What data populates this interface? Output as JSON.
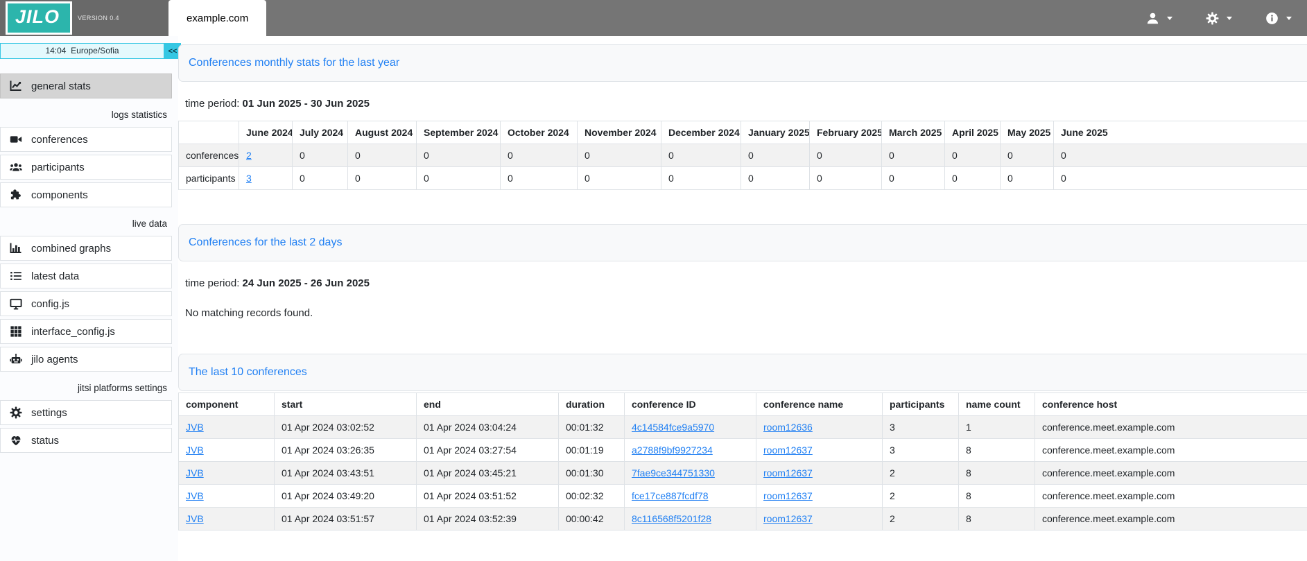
{
  "colors": {
    "brand_teal": "#2cb5ac",
    "topbar_gray": "#757575",
    "accent_cyan": "#35c7e3",
    "link_blue": "#2180f3",
    "row_stripe": "#f2f2f2",
    "active_item_gray": "#d4d4d4"
  },
  "topbar": {
    "logo": "JILO",
    "version": "VERSION 0.4",
    "tab": "example.com",
    "menus": [
      {
        "icon": "user-icon"
      },
      {
        "icon": "gear-icon"
      },
      {
        "icon": "info-icon"
      }
    ]
  },
  "sidebar": {
    "clock_time": "14:04",
    "clock_zone": "Europe/Sofia",
    "collapse_label": "<<",
    "items": [
      {
        "type": "item",
        "icon": "chart-line-icon",
        "label": "general stats",
        "active": true
      },
      {
        "type": "section",
        "label": "logs statistics"
      },
      {
        "type": "item",
        "icon": "video-icon",
        "label": "conferences"
      },
      {
        "type": "item",
        "icon": "users-icon",
        "label": "participants"
      },
      {
        "type": "item",
        "icon": "puzzle-icon",
        "label": "components"
      },
      {
        "type": "section",
        "label": "live data"
      },
      {
        "type": "item",
        "icon": "bar-chart-icon",
        "label": "combined graphs"
      },
      {
        "type": "item",
        "icon": "list-icon",
        "label": "latest data"
      },
      {
        "type": "item",
        "icon": "monitor-icon",
        "label": "config.js"
      },
      {
        "type": "item",
        "icon": "grid-icon",
        "label": "interface_config.js"
      },
      {
        "type": "item",
        "icon": "robot-icon",
        "label": "jilo agents"
      },
      {
        "type": "section",
        "label": "jitsi platforms settings"
      },
      {
        "type": "item",
        "icon": "gear-icon",
        "label": "settings"
      },
      {
        "type": "item",
        "icon": "heart-pulse-icon",
        "label": "status"
      }
    ]
  },
  "main": {
    "monthly": {
      "title": "Conferences monthly stats for the last year",
      "period_label": "time period:",
      "period_value": "01 Jun 2025 - 30 Jun 2025",
      "table": {
        "columns": [
          "",
          "June 2024",
          "July 2024",
          "August 2024",
          "September 2024",
          "October 2024",
          "November 2024",
          "December 2024",
          "January 2025",
          "February 2025",
          "March 2025",
          "April 2025",
          "May 2025",
          "June 2025"
        ],
        "rows": [
          {
            "label": "conferences",
            "first_is_link": true,
            "values": [
              "2",
              "0",
              "0",
              "0",
              "0",
              "0",
              "0",
              "0",
              "0",
              "0",
              "0",
              "0",
              "0"
            ]
          },
          {
            "label": "participants",
            "first_is_link": true,
            "values": [
              "3",
              "0",
              "0",
              "0",
              "0",
              "0",
              "0",
              "0",
              "0",
              "0",
              "0",
              "0",
              "0"
            ]
          }
        ]
      }
    },
    "recent": {
      "title": "Conferences for the last 2 days",
      "period_label": "time period:",
      "period_value": "24 Jun 2025 - 26 Jun 2025",
      "empty": "No matching records found."
    },
    "last10": {
      "title": "The last 10 conferences",
      "columns": [
        "component",
        "start",
        "end",
        "duration",
        "conference ID",
        "conference name",
        "participants",
        "name count",
        "conference host"
      ],
      "rows": [
        [
          "JVB",
          "01 Apr 2024 03:02:52",
          "01 Apr 2024 03:04:24",
          "00:01:32",
          "4c14584fce9a5970",
          "room12636",
          "3",
          "1",
          "conference.meet.example.com"
        ],
        [
          "JVB",
          "01 Apr 2024 03:26:35",
          "01 Apr 2024 03:27:54",
          "00:01:19",
          "a2788f9bf9927234",
          "room12637",
          "3",
          "8",
          "conference.meet.example.com"
        ],
        [
          "JVB",
          "01 Apr 2024 03:43:51",
          "01 Apr 2024 03:45:21",
          "00:01:30",
          "7fae9ce344751330",
          "room12637",
          "2",
          "8",
          "conference.meet.example.com"
        ],
        [
          "JVB",
          "01 Apr 2024 03:49:20",
          "01 Apr 2024 03:51:52",
          "00:02:32",
          "fce17ce887fcdf78",
          "room12637",
          "2",
          "8",
          "conference.meet.example.com"
        ],
        [
          "JVB",
          "01 Apr 2024 03:51:57",
          "01 Apr 2024 03:52:39",
          "00:00:42",
          "8c116568f5201f28",
          "room12637",
          "2",
          "8",
          "conference.meet.example.com"
        ]
      ]
    }
  }
}
